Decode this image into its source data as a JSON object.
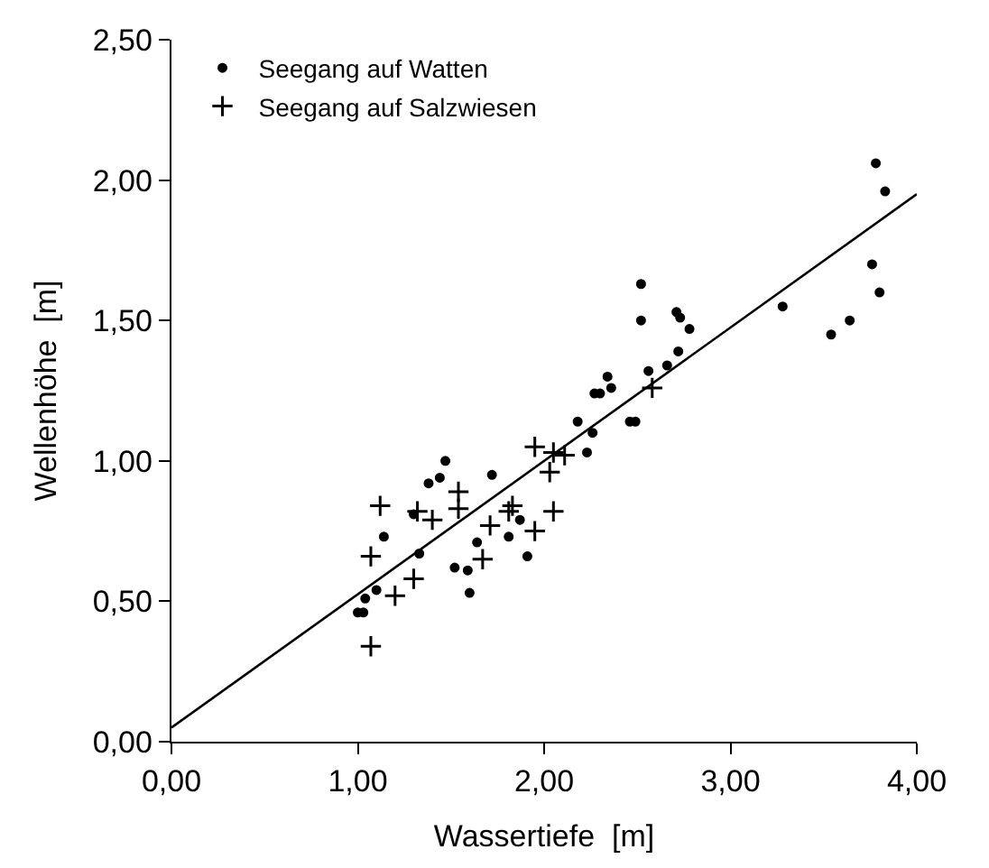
{
  "chart_data": {
    "type": "scatter",
    "xlabel": "Wassertiefe  [m]",
    "ylabel": "Wellenhöhe  [m]",
    "xlim": [
      0,
      4
    ],
    "ylim": [
      0,
      2.5
    ],
    "xticks": [
      {
        "value": 0,
        "label": "0,00"
      },
      {
        "value": 1,
        "label": "1,00"
      },
      {
        "value": 2,
        "label": "2,00"
      },
      {
        "value": 3,
        "label": "3,00"
      },
      {
        "value": 4,
        "label": "4,00"
      }
    ],
    "yticks": [
      {
        "value": 0,
        "label": "0,00"
      },
      {
        "value": 0.5,
        "label": "0,50"
      },
      {
        "value": 1,
        "label": "1,00"
      },
      {
        "value": 1.5,
        "label": "1,50"
      },
      {
        "value": 2,
        "label": "2,00"
      },
      {
        "value": 2.5,
        "label": "2,50"
      }
    ],
    "legend": "top left",
    "series": [
      {
        "name": "Seegang auf Watten",
        "color": "#000000",
        "marker": "circle",
        "x": [
          1.0,
          1.03,
          1.04,
          1.1,
          1.14,
          1.3,
          1.33,
          1.38,
          1.44,
          1.47,
          1.52,
          1.59,
          1.6,
          1.64,
          1.72,
          1.81,
          1.87,
          1.91,
          2.18,
          2.23,
          2.26,
          2.27,
          2.3,
          2.34,
          2.36,
          2.46,
          2.49,
          2.52,
          2.52,
          2.56,
          2.66,
          2.71,
          2.73,
          2.72,
          2.78,
          3.28,
          3.54,
          3.64,
          3.76,
          3.8,
          3.78,
          3.83
        ],
        "values": [
          0.46,
          0.46,
          0.51,
          0.54,
          0.73,
          0.81,
          0.67,
          0.92,
          0.94,
          1.0,
          0.62,
          0.61,
          0.53,
          0.71,
          0.95,
          0.73,
          0.79,
          0.66,
          1.14,
          1.03,
          1.1,
          1.24,
          1.24,
          1.3,
          1.26,
          1.14,
          1.14,
          1.63,
          1.5,
          1.32,
          1.34,
          1.53,
          1.51,
          1.39,
          1.47,
          1.55,
          1.45,
          1.5,
          1.7,
          1.6,
          2.06,
          1.96
        ]
      },
      {
        "name": "Seegang auf Salzwiesen",
        "color": "#000000",
        "marker": "cross",
        "x": [
          1.07,
          1.07,
          1.12,
          1.2,
          1.3,
          1.32,
          1.4,
          1.54,
          1.54,
          1.67,
          1.71,
          1.81,
          1.83,
          1.95,
          1.95,
          2.03,
          2.05,
          2.05,
          2.11,
          2.58
        ],
        "values": [
          0.34,
          0.66,
          0.84,
          0.52,
          0.58,
          0.82,
          0.79,
          0.89,
          0.83,
          0.65,
          0.77,
          0.82,
          0.84,
          0.75,
          1.05,
          0.96,
          0.82,
          1.03,
          1.02,
          1.26
        ]
      },
      {
        "type": "line",
        "color": "#000000",
        "marker": "none",
        "line_style": "solid",
        "x": [
          0,
          4
        ],
        "values": [
          0.05,
          1.95
        ]
      }
    ]
  }
}
